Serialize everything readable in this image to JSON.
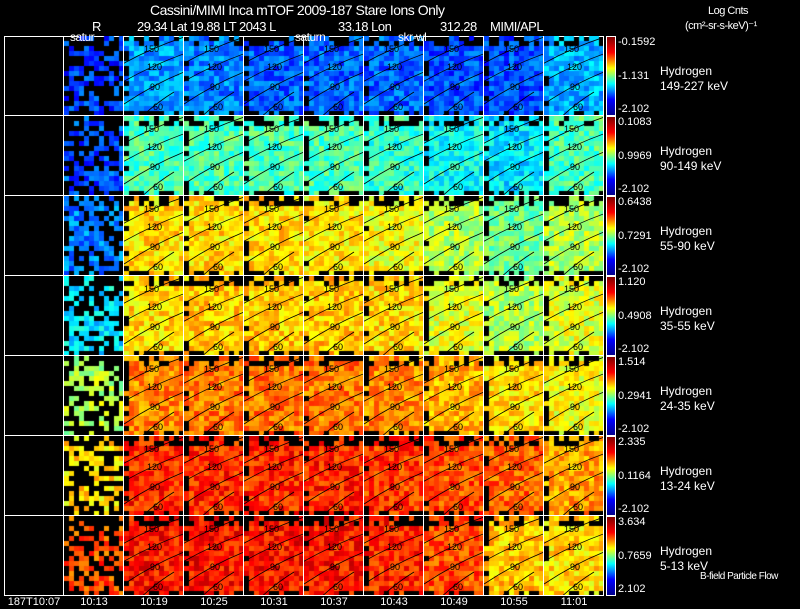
{
  "header": {
    "title": "Cassini/MIMI Inca mTOF  2009-187   Stare   Ions Only",
    "r_label": "R",
    "position": "29.34 Lat 19.88 LT 2043 L",
    "lon": "33.18 Lon",
    "lon_val": "312.28",
    "credit": "MIMI/APL",
    "cbar_title": "Log Cnts",
    "cbar_units": "(cm²-sr-s-keV)⁻¹"
  },
  "overlay_labels": [
    "satur",
    "saturn",
    "skr-wl"
  ],
  "footer_label": "B-field Particle Flow",
  "chart_data": {
    "type": "heatmap",
    "title": "Cassini/MIMI Inca mTOF  2009-187   Stare   Ions Only",
    "x_tick_labels": [
      "187T10:07",
      "10:13",
      "10:19",
      "10:25",
      "10:31",
      "10:37",
      "10:43",
      "10:49",
      "10:55",
      "11:01"
    ],
    "contour_labels": [
      "150",
      "120",
      "90",
      "60"
    ],
    "colorbar_label": "Log Cnts (cm²-sr-s-keV)⁻¹",
    "rows": [
      {
        "species": "Hydrogen",
        "energy": "149-227 keV",
        "max": "-0.1592",
        "mid": "-1.131",
        "min": "-2.102",
        "levels": [
          0,
          0.18,
          0.28,
          0.25,
          0.22,
          0.22,
          0.22,
          0.2,
          0.2,
          0.3
        ]
      },
      {
        "species": "Hydrogen",
        "energy": "90-149 keV",
        "max": "0.1083",
        "mid": "0.9969",
        "min": "-2.102",
        "levels": [
          0,
          0.2,
          0.45,
          0.45,
          0.45,
          0.45,
          0.42,
          0.38,
          0.35,
          0.45
        ]
      },
      {
        "species": "Hydrogen",
        "energy": "55-90 keV",
        "max": "0.6438",
        "mid": "0.7291",
        "min": "-2.102",
        "levels": [
          0,
          0.25,
          0.66,
          0.66,
          0.66,
          0.64,
          0.62,
          0.55,
          0.48,
          0.55
        ]
      },
      {
        "species": "Hydrogen",
        "energy": "35-55 keV",
        "max": "1.120",
        "mid": "0.4908",
        "min": "-2.102",
        "levels": [
          0,
          0.35,
          0.66,
          0.68,
          0.68,
          0.68,
          0.66,
          0.6,
          0.55,
          0.6
        ]
      },
      {
        "species": "Hydrogen",
        "energy": "24-35 keV",
        "max": "1.514",
        "mid": "0.2941",
        "min": "-2.102",
        "levels": [
          0,
          0.55,
          0.74,
          0.76,
          0.76,
          0.76,
          0.74,
          0.7,
          0.66,
          0.62
        ]
      },
      {
        "species": "Hydrogen",
        "energy": "13-24 keV",
        "max": "2.335",
        "mid": "0.1164",
        "min": "-2.102",
        "levels": [
          0,
          0.66,
          0.84,
          0.84,
          0.84,
          0.84,
          0.82,
          0.8,
          0.78,
          0.72
        ]
      },
      {
        "species": "Hydrogen",
        "energy": "5-13 keV",
        "max": "3.634",
        "mid": "0.7659",
        "min": "2.102",
        "levels": [
          0,
          0.8,
          0.86,
          0.86,
          0.86,
          0.86,
          0.84,
          0.8,
          0.68,
          0.66
        ]
      }
    ]
  }
}
